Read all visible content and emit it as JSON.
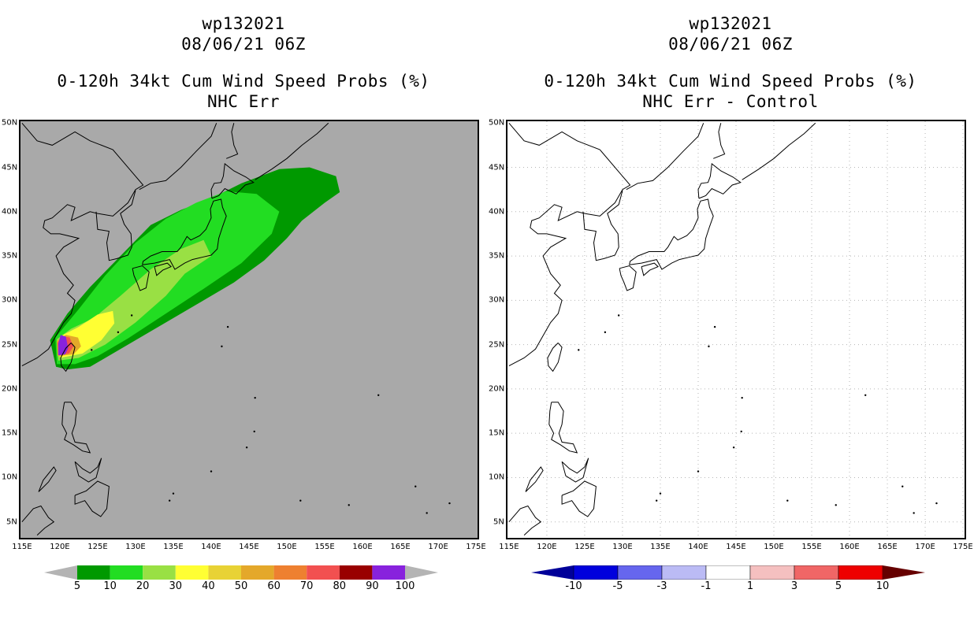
{
  "panels": [
    {
      "id": "left",
      "storm_id": "wp132021",
      "datetime": "08/06/21 06Z",
      "product": "0-120h 34kt Cum Wind Speed Probs (%)",
      "subtitle": "NHC Err",
      "background": "#a9a9a9",
      "colorbar": {
        "labels": [
          "5",
          "10",
          "20",
          "30",
          "40",
          "50",
          "60",
          "70",
          "80",
          "90",
          "100"
        ],
        "colors": [
          "#009900",
          "#22dd22",
          "#99e044",
          "#ffff33",
          "#e8d235",
          "#e4a82a",
          "#ee8030",
          "#f25050",
          "#990000",
          "#8822dd"
        ],
        "under_color": "#b4b4b4",
        "over_color": "#b4b4b4"
      }
    },
    {
      "id": "right",
      "storm_id": "wp132021",
      "datetime": "08/06/21 06Z",
      "product": "0-120h 34kt Cum Wind Speed Probs (%)",
      "subtitle": "NHC Err - Control",
      "background": "#ffffff",
      "colorbar": {
        "labels": [
          "-10",
          "-5",
          "-3",
          "-1",
          "1",
          "3",
          "5",
          "10"
        ],
        "colors": [
          "#0000dd",
          "#6666ee",
          "#bbbbf5",
          "#ffffff",
          "#f5c0c0",
          "#f06666",
          "#ee0000"
        ],
        "under_color": "#000099",
        "over_color": "#660000"
      }
    }
  ],
  "axes": {
    "lat_labels": [
      "50N",
      "45N",
      "40N",
      "35N",
      "30N",
      "25N",
      "20N",
      "15N",
      "10N",
      "5N"
    ],
    "lon_labels": [
      "115E",
      "120E",
      "125E",
      "130E",
      "135E",
      "140E",
      "145E",
      "150E",
      "155E",
      "160E",
      "165E",
      "170E",
      "175E"
    ],
    "lat_range": [
      5,
      50
    ],
    "lon_range": [
      115,
      175
    ]
  },
  "probability_field": {
    "levels": [
      {
        "min": 5,
        "color": "#009900",
        "polygon": [
          [
            119.5,
            22.5
          ],
          [
            121,
            22.2
          ],
          [
            124,
            22.5
          ],
          [
            128,
            24.5
          ],
          [
            133,
            27
          ],
          [
            138,
            29.5
          ],
          [
            143,
            32
          ],
          [
            147,
            34.5
          ],
          [
            150,
            37
          ],
          [
            152,
            39
          ],
          [
            155,
            41
          ],
          [
            157,
            42.2
          ],
          [
            156.5,
            44
          ],
          [
            153,
            45
          ],
          [
            149,
            44.8
          ],
          [
            144,
            43.2
          ],
          [
            140,
            41.5
          ],
          [
            136,
            40.2
          ],
          [
            132,
            38.5
          ],
          [
            128,
            35
          ],
          [
            124,
            31.5
          ],
          [
            121,
            28.5
          ],
          [
            118.7,
            25.5
          ]
        ]
      },
      {
        "min": 10,
        "color": "#22dd22",
        "polygon": [
          [
            119.6,
            22.8
          ],
          [
            122,
            22.8
          ],
          [
            125,
            23.7
          ],
          [
            129,
            25.7
          ],
          [
            134,
            28.5
          ],
          [
            139,
            31.3
          ],
          [
            144,
            34.2
          ],
          [
            148,
            37.5
          ],
          [
            149,
            40
          ],
          [
            146,
            42
          ],
          [
            142,
            42.3
          ],
          [
            138,
            41
          ],
          [
            134,
            39.2
          ],
          [
            130,
            36.5
          ],
          [
            126,
            32.8
          ],
          [
            122.5,
            29
          ],
          [
            119.4,
            25.8
          ]
        ]
      },
      {
        "min": 20,
        "color": "#99e044",
        "polygon": [
          [
            119.8,
            23.2
          ],
          [
            122.5,
            23.5
          ],
          [
            126,
            25
          ],
          [
            130,
            27.5
          ],
          [
            134,
            30.5
          ],
          [
            136.5,
            33
          ],
          [
            140,
            35
          ],
          [
            139,
            36.8
          ],
          [
            136,
            35.8
          ],
          [
            132,
            33.5
          ],
          [
            128,
            30.5
          ],
          [
            124.5,
            28
          ],
          [
            121.5,
            26.8
          ],
          [
            119.6,
            25.6
          ]
        ]
      },
      {
        "min": 30,
        "color": "#ffff33",
        "polygon": [
          [
            120,
            23.5
          ],
          [
            123,
            24
          ],
          [
            125.5,
            25.5
          ],
          [
            127.2,
            27.4
          ],
          [
            127,
            28.8
          ],
          [
            125,
            28.4
          ],
          [
            122.5,
            27
          ],
          [
            120.2,
            26
          ]
        ]
      },
      {
        "min": 50,
        "color": "#e4a82a",
        "polygon": [
          [
            119.7,
            23.7
          ],
          [
            121.8,
            23.9
          ],
          [
            122.8,
            24.8
          ],
          [
            122.4,
            25.8
          ],
          [
            120.8,
            26.1
          ],
          [
            119.6,
            25.4
          ]
        ]
      },
      {
        "min": 70,
        "color": "#f25050",
        "polygon": [
          [
            119.8,
            23.8
          ],
          [
            121.2,
            24
          ],
          [
            121.8,
            24.8
          ],
          [
            121.3,
            25.8
          ],
          [
            120.2,
            26
          ],
          [
            119.7,
            25.2
          ]
        ]
      },
      {
        "min": 90,
        "color": "#8822dd",
        "polygon": [
          [
            119.8,
            23.8
          ],
          [
            120.7,
            23.9
          ],
          [
            121.1,
            24.6
          ],
          [
            120.8,
            25.9
          ],
          [
            120.1,
            26.1
          ],
          [
            119.8,
            25.1
          ]
        ]
      }
    ]
  }
}
